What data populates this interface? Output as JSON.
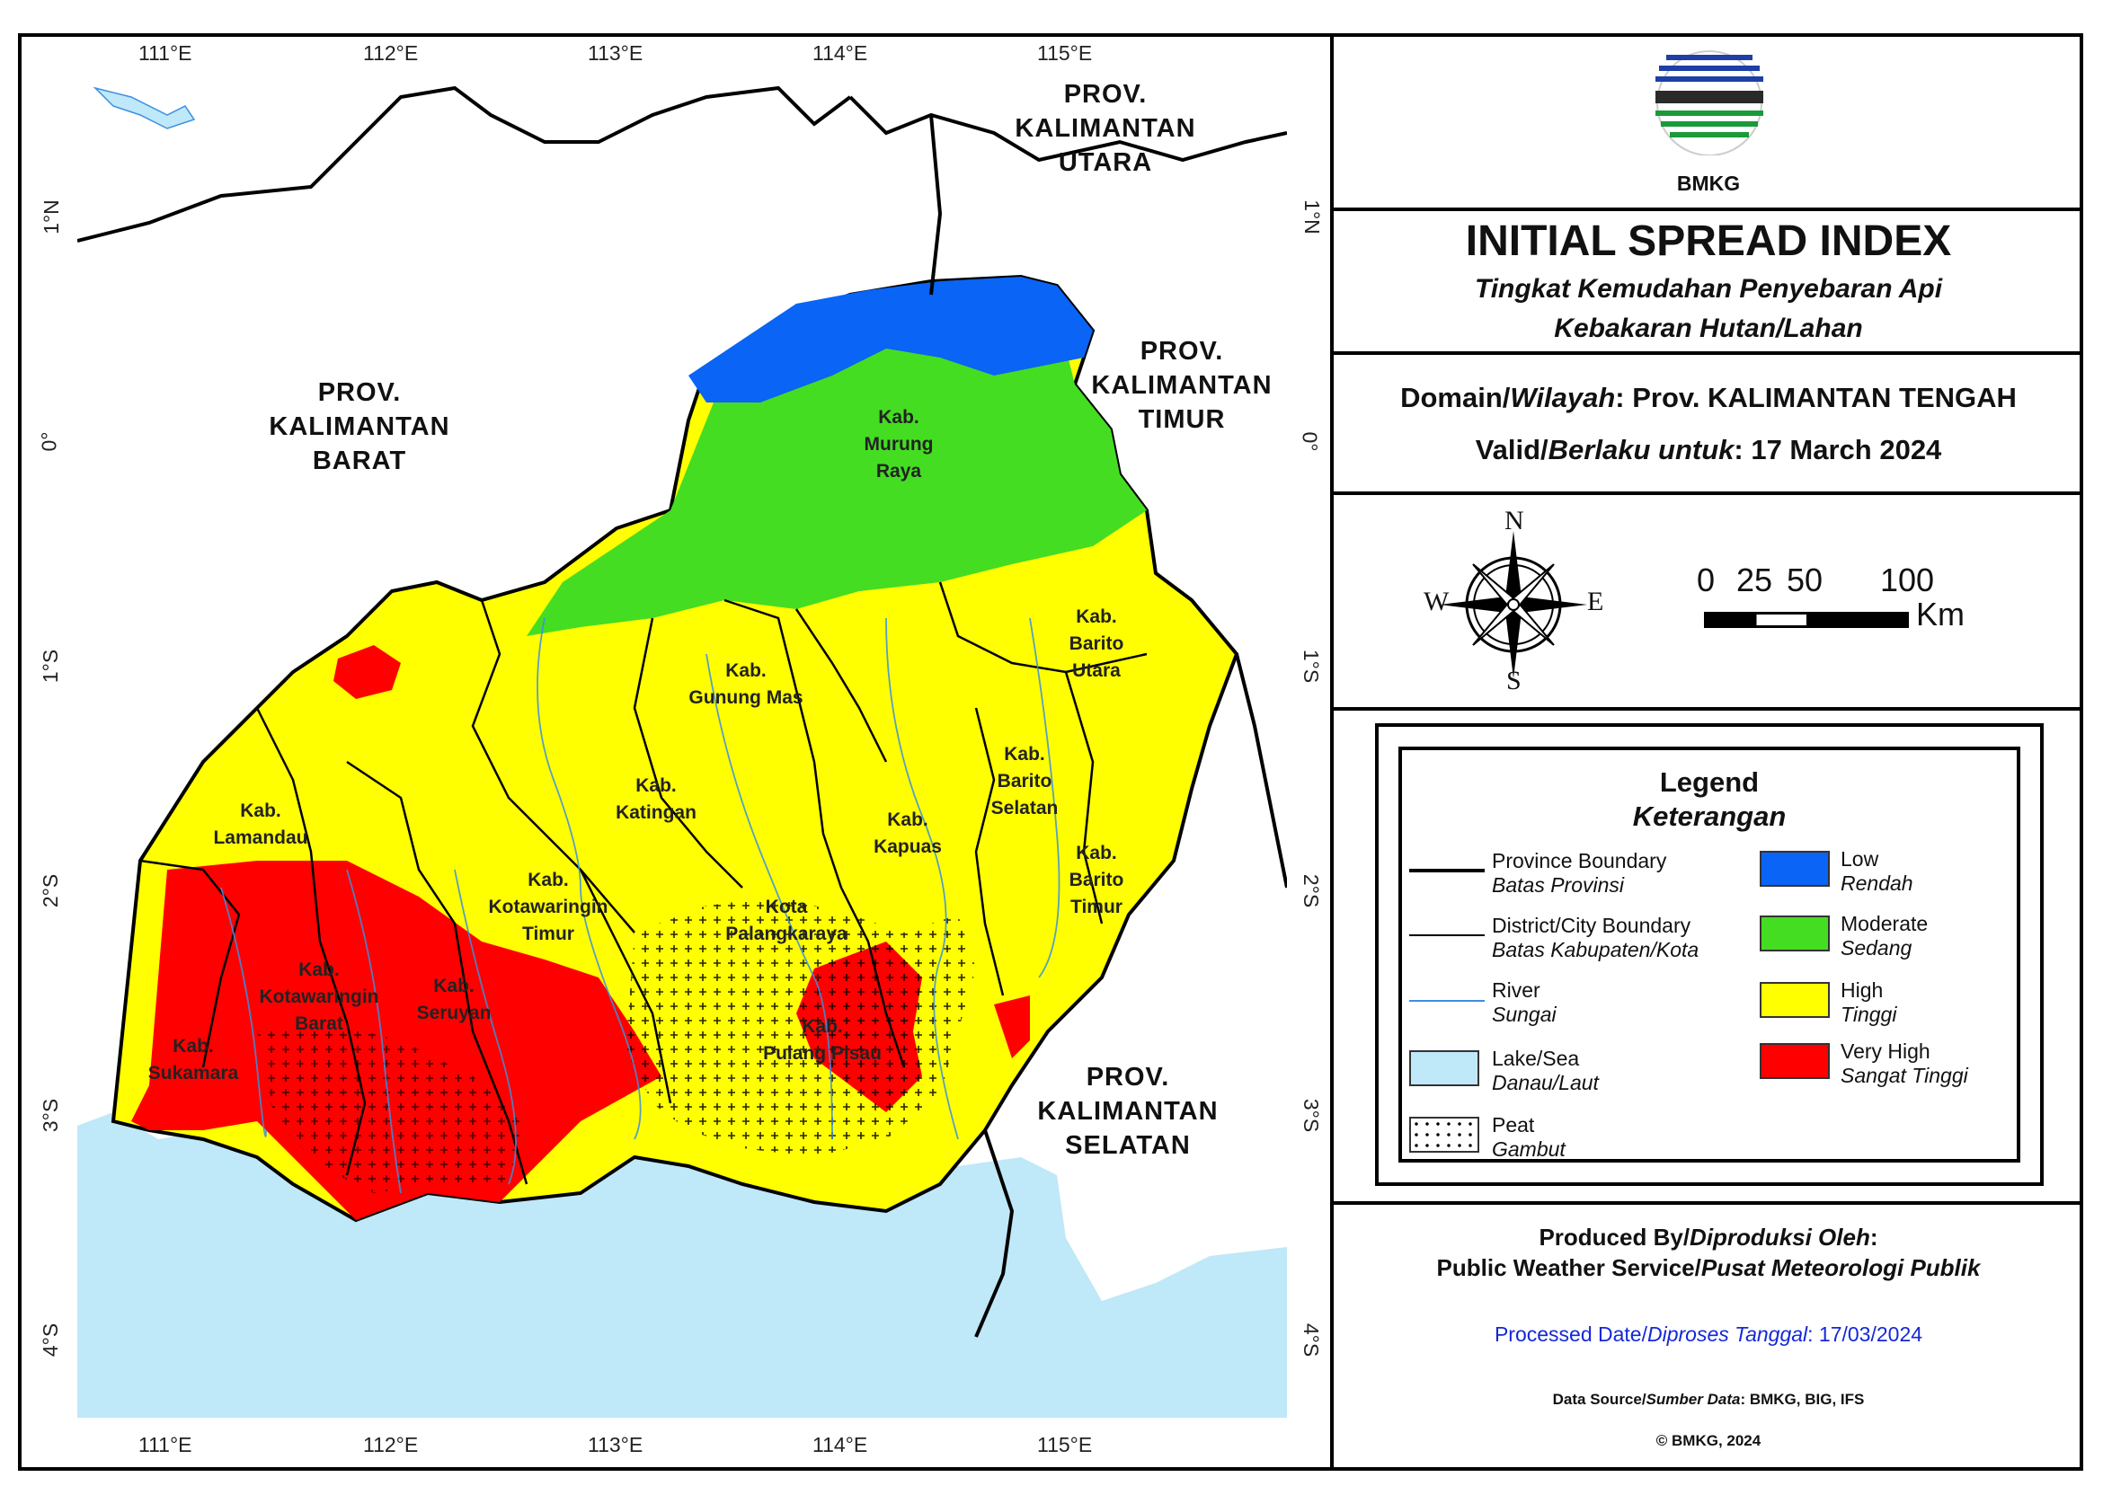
{
  "title": "INITIAL SPREAD INDEX",
  "subtitle_line1": "Tingkat Kemudahan Penyebaran Api",
  "subtitle_line2": "Kebakaran Hutan/Lahan",
  "logo_text": "BMKG",
  "domain": {
    "label_en": "Domain/",
    "label_id": "Wilayah",
    "value": ": Prov. KALIMANTAN TENGAH"
  },
  "valid": {
    "label_en": "Valid/",
    "label_id": "Berlaku untuk",
    "value": ": 17 March 2024"
  },
  "compass": {
    "n": "N",
    "s": "S",
    "e": "E",
    "w": "W"
  },
  "scale": {
    "ticks": [
      "0",
      "25",
      "50",
      "100"
    ],
    "unit": "Km"
  },
  "legend": {
    "title": "Legend",
    "title_id": "Keterangan",
    "lines": [
      {
        "en": "Province Boundary",
        "id": "Batas Provinsi"
      },
      {
        "en": "District/City Boundary",
        "id": "Batas Kabupaten/Kota"
      },
      {
        "en": "River",
        "id": "Sungai"
      },
      {
        "en": "Lake/Sea",
        "id": "Danau/Laut"
      },
      {
        "en": "Peat",
        "id": "Gambut"
      }
    ],
    "classes": [
      {
        "en": "Low",
        "id": "Rendah",
        "color": "#0a64f5"
      },
      {
        "en": "Moderate",
        "id": "Sedang",
        "color": "#44dd22"
      },
      {
        "en": "High",
        "id": "Tinggi",
        "color": "#ffff00"
      },
      {
        "en": "Very High",
        "id": "Sangat Tinggi",
        "color": "#ff0000"
      }
    ]
  },
  "produced": {
    "line1_en": "Produced By/",
    "line1_id": "Diproduksi Oleh",
    "line2_en": "Public Weather Service/",
    "line2_id": "Pusat Meteorologi Publik"
  },
  "processed": {
    "en": "Processed Date/",
    "id": "Diproses Tanggal",
    "value": ": 17/03/2024"
  },
  "source": {
    "en": "Data Source/",
    "id": "Sumber Data",
    "value": ": BMKG, BIG, IFS"
  },
  "copyright": "© BMKG, 2024",
  "map": {
    "lon_ticks": [
      "111°E",
      "112°E",
      "113°E",
      "114°E",
      "115°E"
    ],
    "lat_ticks": [
      "1°N",
      "0°",
      "1°S",
      "2°S",
      "3°S",
      "4°S"
    ],
    "provinces": [
      {
        "lines": [
          "PROV.",
          "KALIMANTAN",
          "BARAT"
        ]
      },
      {
        "lines": [
          "PROV.",
          "KALIMANTAN",
          "UTARA"
        ]
      },
      {
        "lines": [
          "PROV.",
          "KALIMANTAN",
          "TIMUR"
        ]
      },
      {
        "lines": [
          "PROV.",
          "KALIMANTAN",
          "SELATAN"
        ]
      }
    ],
    "districts": [
      {
        "lines": [
          "Kab.",
          "Murung",
          "Raya"
        ]
      },
      {
        "lines": [
          "Kab.",
          "Barito",
          "Utara"
        ]
      },
      {
        "lines": [
          "Kab.",
          "Gunung Mas"
        ]
      },
      {
        "lines": [
          "Kab.",
          "Katingan"
        ]
      },
      {
        "lines": [
          "Kab.",
          "Barito",
          "Selatan"
        ]
      },
      {
        "lines": [
          "Kab.",
          "Kapuas"
        ]
      },
      {
        "lines": [
          "Kab.",
          "Lamandau"
        ]
      },
      {
        "lines": [
          "Kab.",
          "Barito",
          "Timur"
        ]
      },
      {
        "lines": [
          "Kab.",
          "Kotawaringin",
          "Timur"
        ]
      },
      {
        "lines": [
          "Kota",
          "Palangkaraya"
        ]
      },
      {
        "lines": [
          "Kab.",
          "Kotawaringin",
          "Barat"
        ]
      },
      {
        "lines": [
          "Kab.",
          "Seruyan"
        ]
      },
      {
        "lines": [
          "Kab.",
          "Pulang Pisau"
        ]
      },
      {
        "lines": [
          "Kab.",
          "Sukamara"
        ]
      }
    ]
  }
}
